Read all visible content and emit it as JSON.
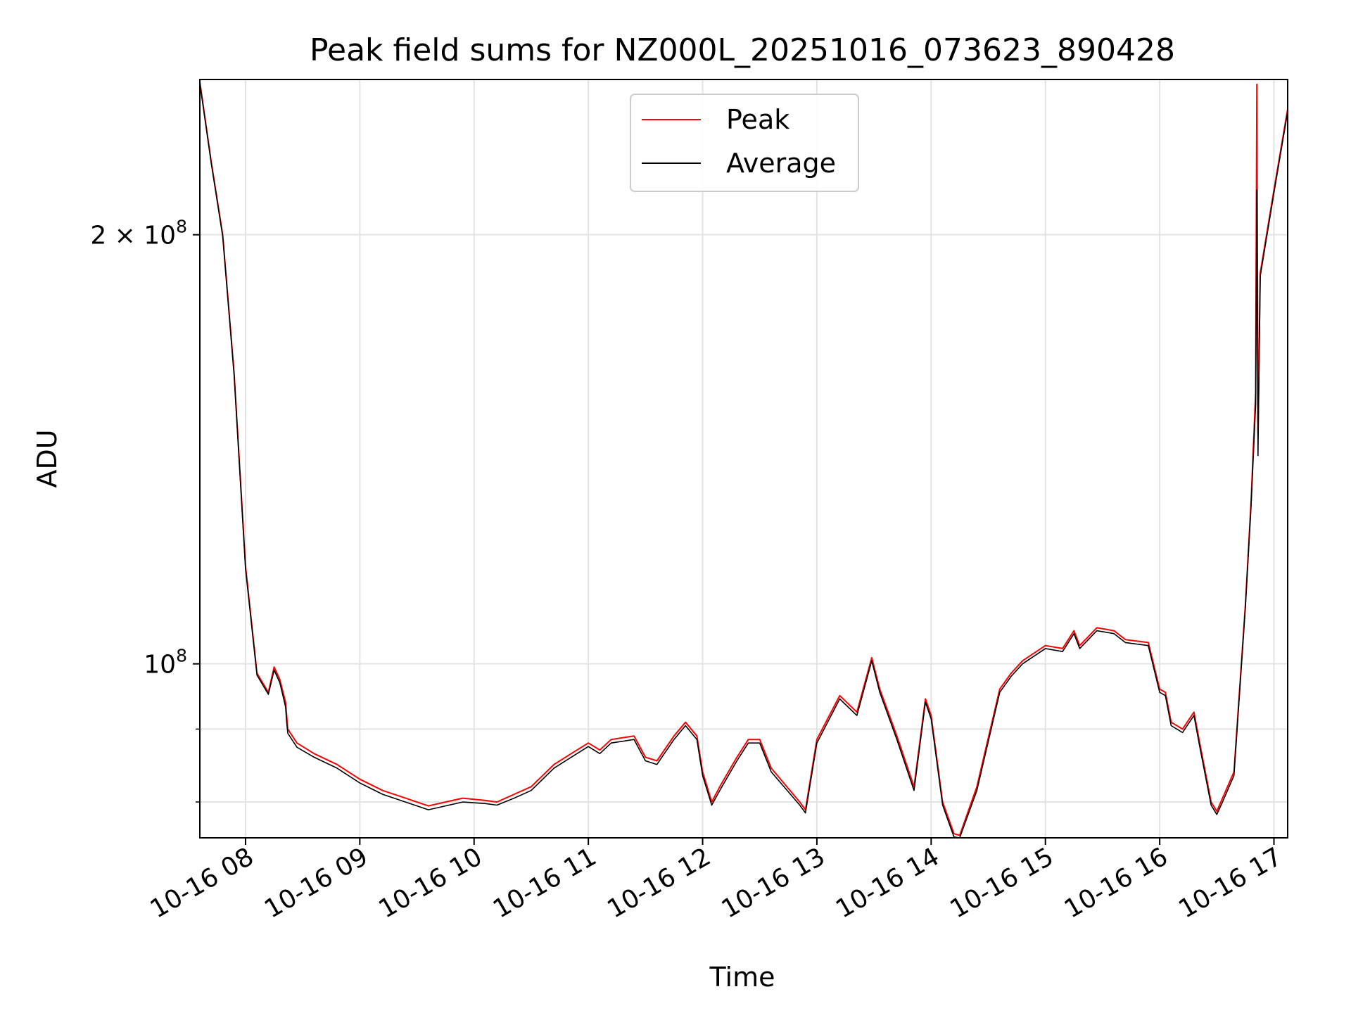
{
  "chart_data": {
    "type": "line",
    "title": "Peak field sums for NZ000L_20251016_073623_890428",
    "xlabel": "Time",
    "ylabel": "ADU",
    "yscale": "log",
    "grid": true,
    "legend_position": "upper-center",
    "xlim": [
      7.6,
      17.12
    ],
    "ylim": [
      75500000,
      257000000
    ],
    "x_ticks": [
      8,
      9,
      10,
      11,
      12,
      13,
      14,
      15,
      16,
      17
    ],
    "x_tick_labels": [
      "10-16 08",
      "10-16 09",
      "10-16 10",
      "10-16 11",
      "10-16 12",
      "10-16 13",
      "10-16 14",
      "10-16 15",
      "10-16 16",
      "10-16 17"
    ],
    "y_major_ticks": [
      100000000,
      200000000
    ],
    "y_major_labels": [
      {
        "mantissa": "",
        "base": "10",
        "exp": "8"
      },
      {
        "mantissa": "2 × ",
        "base": "10",
        "exp": "8"
      }
    ],
    "y_minor_ticks": [
      80000000,
      90000000
    ],
    "series": [
      {
        "name": "Peak",
        "color": "#ff0000",
        "x": [
          7.6,
          7.7,
          7.8,
          7.9,
          8.0,
          8.1,
          8.2,
          8.25,
          8.3,
          8.35,
          8.36,
          8.37,
          8.45,
          8.6,
          8.8,
          9.0,
          9.2,
          9.4,
          9.6,
          9.75,
          9.9,
          10.1,
          10.2,
          10.35,
          10.5,
          10.7,
          10.85,
          11.0,
          11.1,
          11.2,
          11.4,
          11.5,
          11.6,
          11.75,
          11.85,
          11.95,
          12.0,
          12.08,
          12.15,
          12.3,
          12.4,
          12.5,
          12.6,
          12.85,
          12.9,
          13.0,
          13.2,
          13.35,
          13.48,
          13.55,
          13.7,
          13.85,
          13.95,
          14.0,
          14.1,
          14.2,
          14.25,
          14.4,
          14.6,
          14.7,
          14.8,
          15.0,
          15.15,
          15.25,
          15.3,
          15.45,
          15.6,
          15.7,
          15.9,
          16.0,
          16.05,
          16.1,
          16.2,
          16.3,
          16.35,
          16.45,
          16.5,
          16.55,
          16.65,
          16.75,
          16.8,
          16.84,
          16.85,
          16.86,
          16.88,
          17.0,
          17.12
        ],
        "y": [
          256000000,
          225000000,
          200000000,
          160000000,
          117000000,
          98500000,
          95500000,
          99500000,
          97500000,
          94000000,
          92000000,
          90000000,
          88000000,
          86500000,
          85000000,
          83000000,
          81500000,
          80500000,
          79500000,
          80000000,
          80500000,
          80200000,
          80000000,
          81000000,
          82000000,
          85000000,
          86500000,
          88000000,
          87000000,
          88500000,
          89000000,
          86000000,
          85500000,
          89000000,
          91000000,
          89000000,
          84000000,
          80000000,
          82000000,
          86000000,
          88500000,
          88500000,
          84500000,
          80000000,
          79000000,
          88500000,
          95000000,
          92500000,
          101000000,
          96000000,
          89000000,
          82000000,
          94500000,
          92000000,
          80000000,
          76000000,
          75800000,
          82000000,
          96000000,
          98500000,
          100500000,
          103000000,
          102500000,
          105500000,
          103000000,
          106000000,
          105500000,
          104000000,
          103500000,
          96000000,
          95500000,
          91000000,
          90000000,
          92500000,
          88000000,
          80000000,
          78800000,
          80500000,
          84000000,
          110000000,
          130000000,
          155000000,
          255000000,
          145000000,
          188000000,
          215000000,
          245000000
        ]
      },
      {
        "name": "Average",
        "color": "#000000",
        "x": [
          7.6,
          7.7,
          7.8,
          7.9,
          8.0,
          8.1,
          8.2,
          8.25,
          8.3,
          8.35,
          8.36,
          8.37,
          8.45,
          8.6,
          8.8,
          9.0,
          9.2,
          9.4,
          9.6,
          9.75,
          9.9,
          10.1,
          10.2,
          10.35,
          10.5,
          10.7,
          10.85,
          11.0,
          11.1,
          11.2,
          11.4,
          11.5,
          11.6,
          11.75,
          11.85,
          11.95,
          12.0,
          12.08,
          12.15,
          12.3,
          12.4,
          12.5,
          12.6,
          12.85,
          12.9,
          13.0,
          13.2,
          13.35,
          13.48,
          13.55,
          13.7,
          13.85,
          13.95,
          14.0,
          14.1,
          14.2,
          14.25,
          14.4,
          14.6,
          14.7,
          14.8,
          15.0,
          15.15,
          15.25,
          15.3,
          15.45,
          15.6,
          15.7,
          15.9,
          16.0,
          16.05,
          16.1,
          16.2,
          16.3,
          16.35,
          16.45,
          16.5,
          16.55,
          16.65,
          16.75,
          16.8,
          16.84,
          16.85,
          16.86,
          16.88,
          17.0,
          17.12
        ],
        "y": [
          255500000,
          224500000,
          199500000,
          159500000,
          116500000,
          98200000,
          95200000,
          99000000,
          97000000,
          93300000,
          91000000,
          89400000,
          87400000,
          86000000,
          84500000,
          82500000,
          81000000,
          80000000,
          79000000,
          79500000,
          80000000,
          79800000,
          79600000,
          80500000,
          81500000,
          84500000,
          86000000,
          87500000,
          86500000,
          88000000,
          88500000,
          85500000,
          85000000,
          88500000,
          90500000,
          88500000,
          83500000,
          79600000,
          81500000,
          85500000,
          88000000,
          88000000,
          84000000,
          79600000,
          78600000,
          88000000,
          94500000,
          92000000,
          100500000,
          95500000,
          88500000,
          81500000,
          94000000,
          91500000,
          79600000,
          75600000,
          75500000,
          81500000,
          95500000,
          98000000,
          100000000,
          102500000,
          102000000,
          105000000,
          102500000,
          105500000,
          105000000,
          103500000,
          103000000,
          95500000,
          95000000,
          90500000,
          89500000,
          92000000,
          87500000,
          79600000,
          78400000,
          80000000,
          83500000,
          109500000,
          129000000,
          152000000,
          215000000,
          140000000,
          187000000,
          214000000,
          244000000
        ]
      }
    ]
  }
}
